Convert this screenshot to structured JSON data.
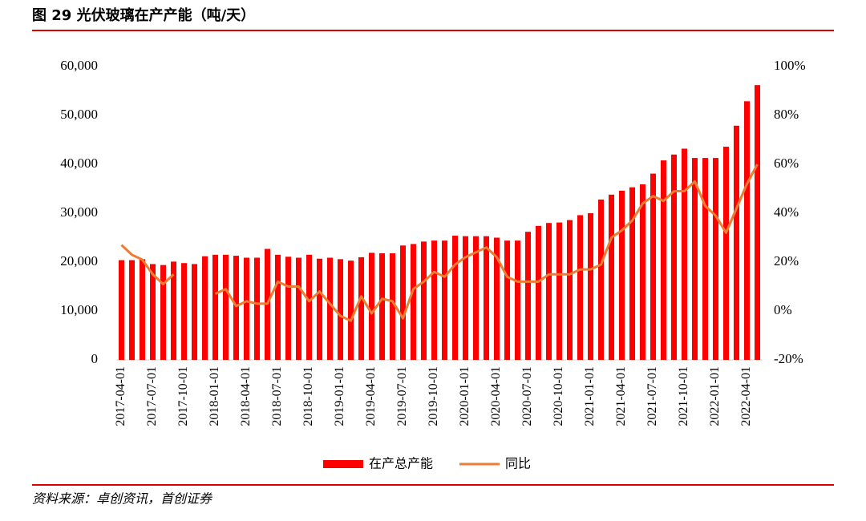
{
  "chart_data": {
    "type": "combo",
    "title": "图 29 光伏玻璃在产产能（吨/天）",
    "source": "资料来源：卓创资讯，首创证券",
    "categories": [
      "2017-04-01",
      null,
      null,
      "2017-07-01",
      null,
      null,
      "2017-10-01",
      null,
      null,
      "2018-01-01",
      null,
      null,
      "2018-04-01",
      null,
      null,
      "2018-07-01",
      null,
      null,
      "2018-10-01",
      null,
      null,
      "2019-01-01",
      null,
      null,
      "2019-04-01",
      null,
      null,
      "2019-07-01",
      null,
      null,
      "2019-10-01",
      null,
      null,
      "2020-01-01",
      null,
      null,
      "2020-04-01",
      null,
      null,
      "2020-07-01",
      null,
      null,
      "2020-10-01",
      null,
      null,
      "2021-01-01",
      null,
      null,
      "2021-04-01",
      null,
      null,
      "2021-07-01",
      null,
      null,
      "2021-10-01",
      null,
      null,
      "2022-01-01",
      null,
      null,
      "2022-04-01",
      null
    ],
    "series": [
      {
        "name": "在产总产能",
        "type": "bar",
        "color": "#ff0000",
        "values": [
          20400,
          20400,
          20600,
          19600,
          19400,
          20100,
          19800,
          19600,
          21200,
          21500,
          21500,
          21300,
          20900,
          20900,
          22700,
          21500,
          21100,
          20900,
          21500,
          20700,
          20900,
          20600,
          20300,
          21000,
          21900,
          21800,
          21800,
          23400,
          23700,
          24200,
          24400,
          24400,
          25400,
          25300,
          25300,
          25300,
          25000,
          24400,
          24400,
          26200,
          27400,
          28000,
          28100,
          28600,
          29600,
          30000,
          32800,
          33800,
          34600,
          35300,
          35900,
          38100,
          40800,
          42000,
          43200,
          41300,
          41300,
          41300,
          43600,
          47900,
          52900,
          56200
        ]
      },
      {
        "name": "同比",
        "type": "line",
        "axis": "y2",
        "color": "#ed7d31",
        "values": [
          27,
          23,
          21,
          15,
          11,
          15,
          null,
          null,
          null,
          7,
          9,
          2,
          4,
          3,
          3,
          12,
          10,
          10,
          4,
          8,
          3,
          -2,
          -4,
          6,
          -1,
          5,
          4,
          -3,
          9,
          12,
          16,
          14,
          19,
          22,
          24,
          26,
          22,
          14,
          12,
          12,
          12,
          15,
          15,
          15,
          17,
          17,
          19,
          30,
          33,
          37,
          44,
          47,
          45,
          49,
          49,
          53,
          43,
          39,
          32,
          42,
          52,
          60
        ]
      }
    ],
    "ylim": [
      0,
      60000
    ],
    "yticks": [
      0,
      {
        "value": 10000,
        "label": "10,000"
      },
      {
        "value": 20000,
        "label": "20,000"
      },
      {
        "value": 30000,
        "label": "30,000"
      },
      {
        "value": 40000,
        "label": "40,000"
      },
      {
        "value": 50000,
        "label": "50,000"
      },
      {
        "value": 60000,
        "label": "60,000"
      }
    ],
    "y2lim": [
      -20,
      100
    ],
    "y2ticks": [
      {
        "value": -20,
        "label": "-20%"
      },
      {
        "value": 0,
        "label": "0%"
      },
      {
        "value": 20,
        "label": "20%"
      },
      {
        "value": 40,
        "label": "40%"
      },
      {
        "value": 60,
        "label": "60%"
      },
      {
        "value": 80,
        "label": "80%"
      },
      {
        "value": 100,
        "label": "100%"
      }
    ],
    "legend": "bottom"
  }
}
